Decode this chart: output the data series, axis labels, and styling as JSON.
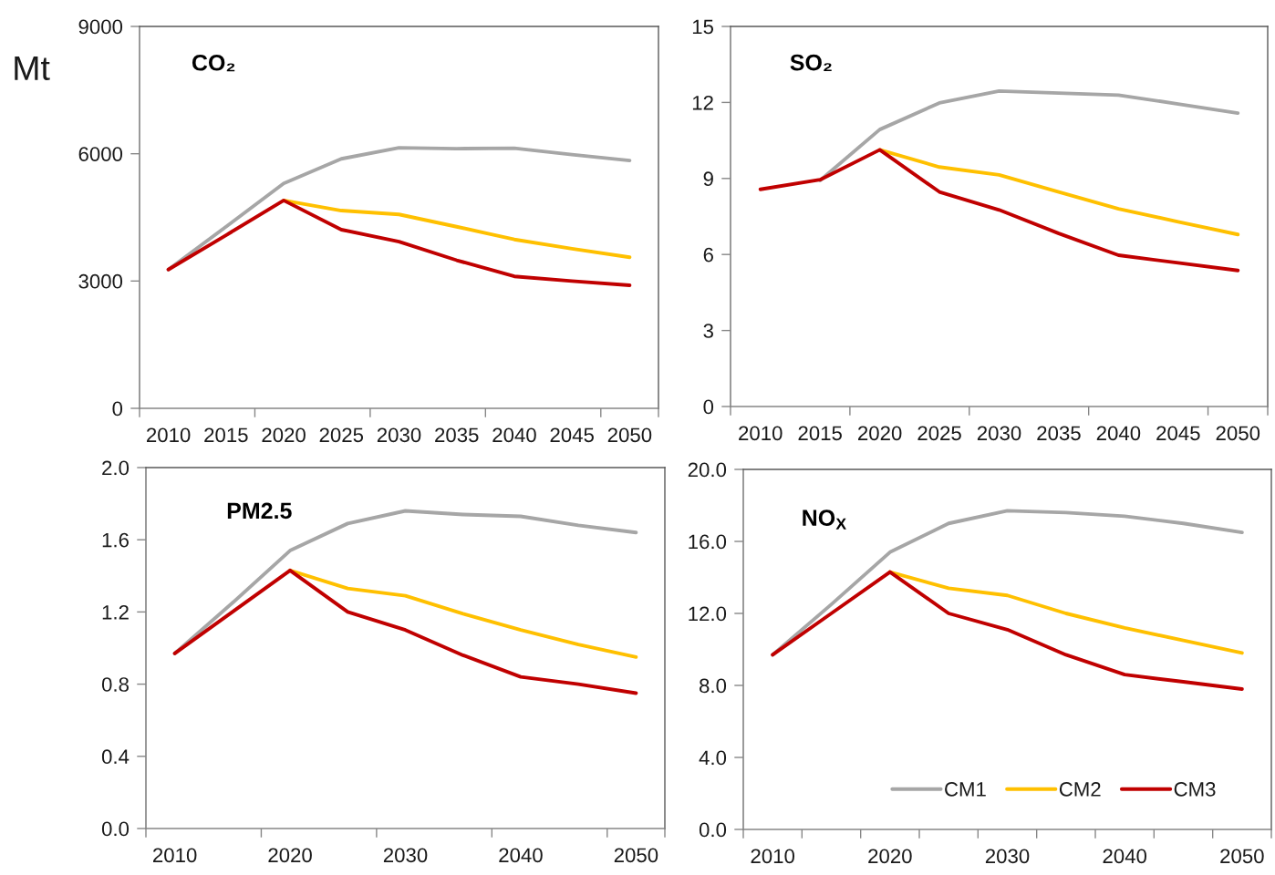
{
  "chart_data": [
    {
      "type": "line",
      "title": "CO₂",
      "ylabel": "Mt",
      "categories": [
        "2010",
        "2015",
        "2020",
        "2025",
        "2030",
        "2035",
        "2040",
        "2045",
        "2050"
      ],
      "ylim": [
        0,
        9000
      ],
      "yticks": [
        0,
        3000,
        6000,
        9000
      ],
      "series": [
        {
          "color": "#a6a6a6",
          "values": [
            3270,
            4280,
            5300,
            5880,
            6140,
            6120,
            6130,
            5980,
            5840
          ]
        },
        {
          "color": "#ffc000",
          "values": [
            null,
            null,
            4900,
            4660,
            4570,
            4280,
            3980,
            3760,
            3560
          ]
        },
        {
          "color": "#c00000",
          "values": [
            3270,
            4080,
            4900,
            4210,
            3930,
            3490,
            3110,
            3000,
            2900
          ]
        }
      ]
    },
    {
      "type": "line",
      "title": "SO₂",
      "categories": [
        "2010",
        "2015",
        "2020",
        "2025",
        "2030",
        "2035",
        "2040",
        "2045",
        "2050"
      ],
      "ylim": [
        0,
        15
      ],
      "yticks": [
        0,
        3,
        6,
        9,
        12,
        15
      ],
      "series": [
        {
          "color": "#a6a6a6",
          "values": [
            null,
            8.92,
            10.93,
            11.98,
            12.45,
            12.37,
            12.29,
            11.94,
            11.58
          ]
        },
        {
          "color": "#ffc000",
          "values": [
            null,
            null,
            10.13,
            9.45,
            9.14,
            8.47,
            7.8,
            7.29,
            6.79
          ]
        },
        {
          "color": "#c00000",
          "values": [
            8.57,
            8.95,
            10.13,
            8.47,
            7.76,
            6.83,
            5.97,
            5.67,
            5.37
          ]
        }
      ]
    },
    {
      "type": "line",
      "title": "PM2.5",
      "categories": [
        "2010",
        null,
        "2020",
        null,
        "2030",
        null,
        "2040",
        null,
        "2050"
      ],
      "ylim": [
        0,
        2.0
      ],
      "yticks": [
        {
          "value": 0,
          "label": "0.0"
        },
        {
          "value": 0.4,
          "label": "0.4"
        },
        {
          "value": 0.8,
          "label": "0.8"
        },
        {
          "value": 1.2,
          "label": "1.2"
        },
        {
          "value": 1.6,
          "label": "1.6"
        },
        {
          "value": 2.0,
          "label": "2.0"
        }
      ],
      "series": [
        {
          "color": "#a6a6a6",
          "values": [
            0.97,
            1.25,
            1.54,
            1.69,
            1.76,
            1.74,
            1.73,
            1.68,
            1.64
          ]
        },
        {
          "color": "#ffc000",
          "values": [
            null,
            null,
            1.43,
            1.33,
            1.29,
            1.19,
            1.1,
            1.02,
            0.95
          ]
        },
        {
          "color": "#c00000",
          "values": [
            0.97,
            1.2,
            1.43,
            1.2,
            1.1,
            0.96,
            0.84,
            0.8,
            0.75
          ]
        }
      ]
    },
    {
      "type": "line",
      "title": "NO$_{X}$",
      "categories": [
        "2010",
        null,
        "2020",
        null,
        "2030",
        null,
        "2040",
        null,
        "2050"
      ],
      "ylim": [
        0,
        20.0
      ],
      "yticks": [
        {
          "value": 0,
          "label": "0.0"
        },
        {
          "value": 4,
          "label": "4.0"
        },
        {
          "value": 8,
          "label": "8.0"
        },
        {
          "value": 12,
          "label": "12.0"
        },
        {
          "value": 16,
          "label": "16.0"
        },
        {
          "value": 20,
          "label": "20.0"
        }
      ],
      "legend": "bottom right",
      "series": [
        {
          "name": "CM1",
          "color": "#a6a6a6",
          "values": [
            9.7,
            12.5,
            15.4,
            17.0,
            17.7,
            17.6,
            17.4,
            17.0,
            16.5
          ]
        },
        {
          "name": "CM2",
          "color": "#ffc000",
          "values": [
            null,
            null,
            14.3,
            13.4,
            13.0,
            12.0,
            11.2,
            10.5,
            9.8
          ]
        },
        {
          "name": "CM3",
          "color": "#c00000",
          "values": [
            9.7,
            12.0,
            14.3,
            12.0,
            11.1,
            9.7,
            8.6,
            8.2,
            7.8
          ]
        }
      ]
    }
  ]
}
